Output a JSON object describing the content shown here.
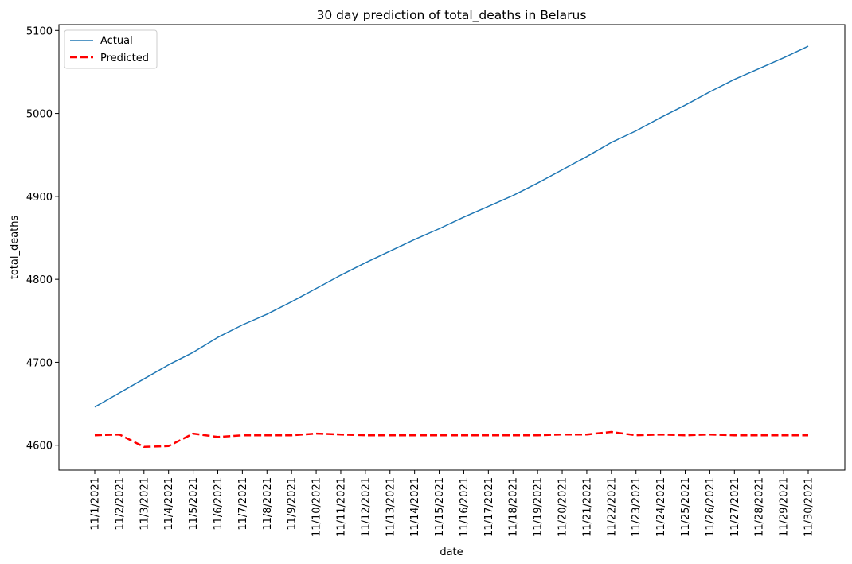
{
  "chart_data": {
    "type": "line",
    "title": "30 day prediction of total_deaths in Belarus",
    "xlabel": "date",
    "ylabel": "total_deaths",
    "categories": [
      "11/1/2021",
      "11/2/2021",
      "11/3/2021",
      "11/4/2021",
      "11/5/2021",
      "11/6/2021",
      "11/7/2021",
      "11/8/2021",
      "11/9/2021",
      "11/10/2021",
      "11/11/2021",
      "11/12/2021",
      "11/13/2021",
      "11/14/2021",
      "11/15/2021",
      "11/16/2021",
      "11/17/2021",
      "11/18/2021",
      "11/19/2021",
      "11/20/2021",
      "11/21/2021",
      "11/22/2021",
      "11/23/2021",
      "11/24/2021",
      "11/25/2021",
      "11/26/2021",
      "11/27/2021",
      "11/28/2021",
      "11/29/2021",
      "11/30/2021"
    ],
    "yticks": [
      4600,
      4700,
      4800,
      4900,
      5000,
      5100
    ],
    "ylim": [
      4570,
      5107
    ],
    "grid": false,
    "legend_position": "top-left",
    "series": [
      {
        "name": "Actual",
        "color": "#1f77b4",
        "style": "solid",
        "values": [
          4646,
          4663,
          4680,
          4697,
          4712,
          4730,
          4745,
          4758,
          4773,
          4789,
          4805,
          4820,
          4834,
          4848,
          4861,
          4875,
          4888,
          4901,
          4916,
          4932,
          4948,
          4965,
          4979,
          4995,
          5010,
          5026,
          5041,
          5054,
          5067,
          5081
        ]
      },
      {
        "name": "Predicted",
        "color": "#ff0000",
        "style": "dashed",
        "values": [
          4612,
          4613,
          4598,
          4599,
          4614,
          4610,
          4612,
          4612,
          4612,
          4614,
          4613,
          4612,
          4612,
          4612,
          4612,
          4612,
          4612,
          4612,
          4612,
          4613,
          4613,
          4616,
          4612,
          4613,
          4612,
          4613,
          4612,
          4612,
          4612,
          4612
        ]
      }
    ]
  }
}
